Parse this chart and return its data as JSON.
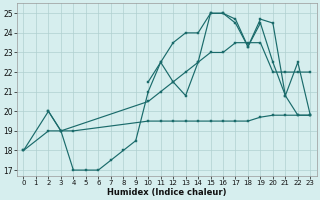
{
  "xlabel": "Humidex (Indice chaleur)",
  "bg_color": "#d6eeee",
  "grid_color": "#b0d0d0",
  "line_color": "#1a6b6b",
  "xlim": [
    -0.5,
    23.5
  ],
  "ylim": [
    16.7,
    25.5
  ],
  "xticks": [
    0,
    1,
    2,
    3,
    4,
    5,
    6,
    7,
    8,
    9,
    10,
    11,
    12,
    13,
    14,
    15,
    16,
    17,
    18,
    19,
    20,
    21,
    22,
    23
  ],
  "yticks": [
    17,
    18,
    19,
    20,
    21,
    22,
    23,
    24,
    25
  ],
  "line1_x": [
    0,
    2,
    3,
    4,
    10,
    11,
    12,
    13,
    14,
    15,
    16,
    17,
    18,
    19,
    20,
    21,
    22,
    23
  ],
  "line1_y": [
    18.0,
    19.0,
    19.0,
    19.0,
    19.5,
    19.5,
    19.5,
    19.5,
    19.5,
    19.5,
    19.5,
    19.5,
    19.5,
    19.7,
    19.8,
    19.8,
    19.8,
    19.8
  ],
  "line2_x": [
    0,
    2,
    3,
    10,
    11,
    12,
    13,
    14,
    15,
    16,
    17,
    18,
    19,
    20,
    21,
    22,
    23
  ],
  "line2_y": [
    18.0,
    20.0,
    19.0,
    20.5,
    21.0,
    21.5,
    22.0,
    22.5,
    23.0,
    23.0,
    23.5,
    23.5,
    23.5,
    22.0,
    22.0,
    22.0,
    22.0
  ],
  "line3_x": [
    2,
    3,
    4,
    5,
    6,
    7,
    8,
    9,
    10,
    11,
    12,
    13,
    14,
    15,
    16,
    17,
    18,
    19,
    20,
    21,
    22,
    23
  ],
  "line3_y": [
    20.0,
    19.0,
    17.0,
    17.0,
    17.0,
    17.5,
    18.0,
    18.5,
    21.0,
    22.5,
    21.5,
    20.8,
    22.5,
    25.0,
    25.0,
    24.5,
    23.3,
    24.5,
    22.5,
    20.8,
    19.8,
    19.8
  ],
  "line4_x": [
    10,
    11,
    12,
    13,
    14,
    15,
    16,
    17,
    18,
    19,
    20,
    21,
    22,
    23
  ],
  "line4_y": [
    21.5,
    22.5,
    23.5,
    24.0,
    24.0,
    25.0,
    25.0,
    24.7,
    23.3,
    24.7,
    24.5,
    20.8,
    22.5,
    19.8
  ]
}
